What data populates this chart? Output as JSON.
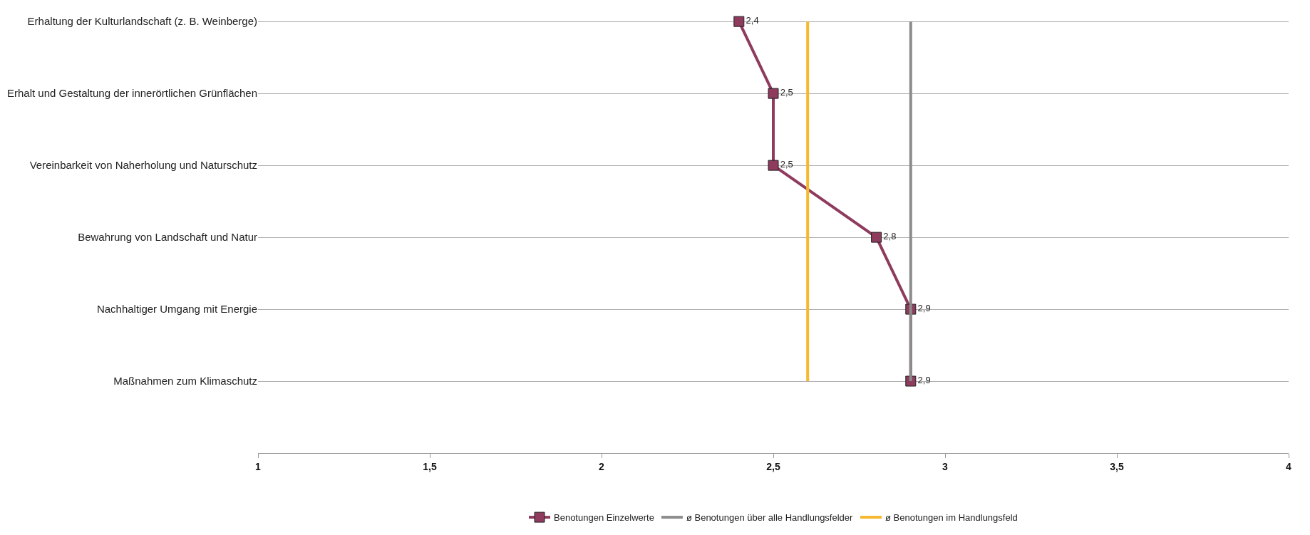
{
  "chart_data": {
    "type": "line",
    "orientation": "horizontal",
    "categories": [
      "Erhaltung der Kulturlandschaft (z. B. Weinberge)",
      "Erhalt und Gestaltung der innerörtlichen Grünflächen",
      "Vereinbarkeit von Naherholung und Naturschutz",
      "Bewahrung von Landschaft und Natur",
      "Nachhaltiger Umgang mit Energie",
      "Maßnahmen zum Klimaschutz"
    ],
    "series": [
      {
        "name": "Benotungen Einzelwerte",
        "color": "#8e3b5e",
        "marker": "square",
        "values": [
          2.4,
          2.5,
          2.5,
          2.8,
          2.9,
          2.9
        ],
        "value_labels": [
          "2,4",
          "2,5",
          "2,5",
          "2,8",
          "2,9",
          "2,9"
        ]
      },
      {
        "name": "ø Benotungen über alle Handlungsfelder",
        "color": "#8c8c8c",
        "marker": "none",
        "values": [
          2.9,
          2.9,
          2.9,
          2.9,
          2.9,
          2.9
        ]
      },
      {
        "name": "ø Benotungen im Handlungsfeld",
        "color": "#f5b82e",
        "marker": "none",
        "values": [
          2.6,
          2.6,
          2.6,
          2.6,
          2.6,
          2.6
        ]
      }
    ],
    "xlim": [
      1,
      4
    ],
    "xticks": [
      1,
      {
        "value": 1.5,
        "label": "1,5"
      },
      2,
      {
        "value": 2.5,
        "label": "2,5"
      },
      3,
      {
        "value": 3.5,
        "label": "3,5"
      },
      4
    ],
    "grid": "y",
    "legend": "bottom"
  }
}
